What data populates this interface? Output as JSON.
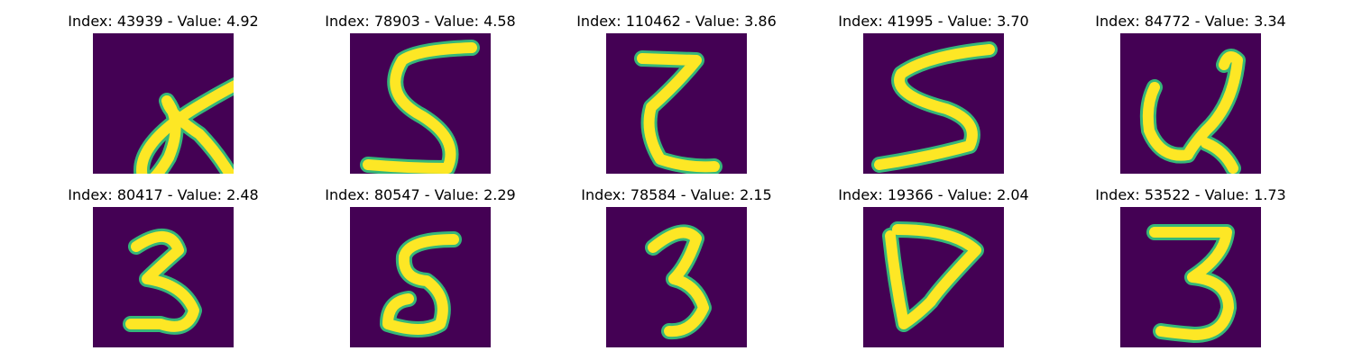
{
  "colors": {
    "background": "#440154",
    "stroke_outer": "#35b779",
    "stroke_inner": "#fde725"
  },
  "panels": [
    {
      "title": "Index: 43939 - Value: 4.92",
      "digit": "4"
    },
    {
      "title": "Index: 78903 - Value: 4.58",
      "digit": "5"
    },
    {
      "title": "Index: 110462 - Value: 3.86",
      "digit": "2"
    },
    {
      "title": "Index: 41995 - Value: 3.70",
      "digit": "5"
    },
    {
      "title": "Index: 84772 - Value: 3.34",
      "digit": "4"
    },
    {
      "title": "Index: 80417 - Value: 2.48",
      "digit": "3"
    },
    {
      "title": "Index: 80547 - Value: 2.29",
      "digit": "5"
    },
    {
      "title": "Index: 78584 - Value: 2.15",
      "digit": "3"
    },
    {
      "title": "Index: 19366 - Value: 2.04",
      "digit": "7"
    },
    {
      "title": "Index: 53522 - Value: 1.73",
      "digit": "3"
    }
  ]
}
